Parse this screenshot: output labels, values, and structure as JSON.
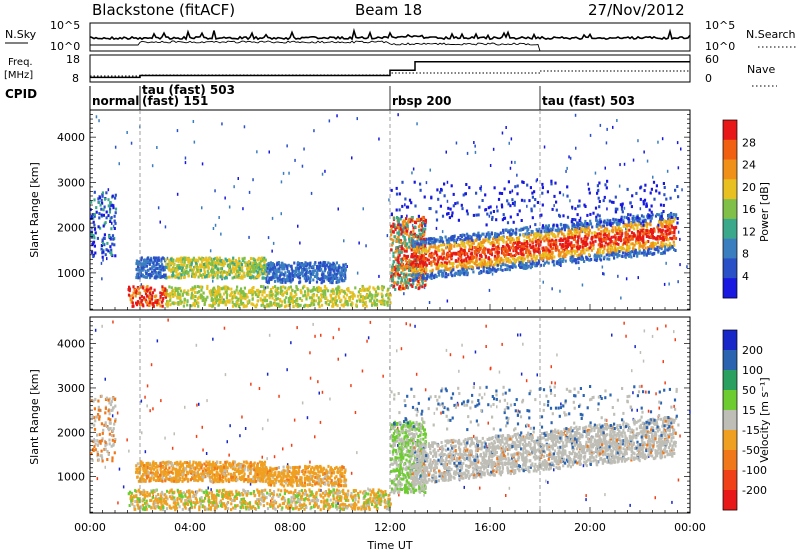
{
  "header": {
    "station": "Blackstone (fitACF)",
    "beam": "Beam 18",
    "date": "27/Nov/2012"
  },
  "chart_data": [
    {
      "type": "line",
      "panel": "noise",
      "left_label": "N.Sky",
      "right_label": "N.Search",
      "left_ticks": [
        "10^5",
        "10^0"
      ],
      "right_ticks": [
        "10^5",
        "10^0"
      ]
    },
    {
      "type": "line",
      "panel": "frequency",
      "left_label_1": "Freq.",
      "left_label_2": "[MHz]",
      "right_label": "Nave",
      "left_ticks": [
        18,
        8
      ],
      "right_ticks": [
        60,
        0
      ],
      "freq_steps": [
        [
          0,
          9.5
        ],
        [
          2.0,
          10.3
        ],
        [
          12.0,
          12.5
        ],
        [
          13.0,
          16.0
        ],
        [
          24.0,
          16.0
        ]
      ]
    },
    {
      "type": "table",
      "panel": "cpid",
      "label": "CPID",
      "modes": [
        {
          "t": 0.0,
          "text": "normal",
          "row": 2
        },
        {
          "t": 2.0,
          "text": "tau (fast) 503",
          "row": 1
        },
        {
          "t": 2.0,
          "text": "(fast) 151",
          "row": 2
        },
        {
          "t": 12.0,
          "text": "rbsp 200",
          "row": 2
        },
        {
          "t": 18.0,
          "text": "tau (fast) 503",
          "row": 2
        }
      ]
    },
    {
      "type": "heatmap",
      "panel": "power",
      "ylabel": "Slant Range [km]",
      "yticks": [
        1000,
        2000,
        3000,
        4000
      ],
      "ylim": [
        180,
        4600
      ],
      "colorbar_label": "Power [dB]",
      "colorbar_ticks": [
        4,
        8,
        12,
        16,
        20,
        24,
        28
      ],
      "colors": [
        "#1818e0",
        "#2a50c8",
        "#3a7ec0",
        "#3aa88a",
        "#80c048",
        "#e8c020",
        "#f09018",
        "#f06010",
        "#e81818"
      ]
    },
    {
      "type": "heatmap",
      "panel": "velocity",
      "ylabel": "Slant Range [km]",
      "yticks": [
        1000,
        2000,
        3000,
        4000
      ],
      "ylim": [
        180,
        4600
      ],
      "colorbar_label": "Velocity [m s⁻¹]",
      "colorbar_ticks": [
        200,
        100,
        50,
        15,
        -15,
        -50,
        -100,
        -200
      ],
      "colors": [
        "#1828c8",
        "#2a64b0",
        "#2aa060",
        "#6ccc30",
        "#bebeb6",
        "#f0a020",
        "#f07818",
        "#f04018",
        "#e81818"
      ]
    }
  ],
  "xaxis": {
    "label": "Time UT",
    "ticks": [
      "00:00",
      "04:00",
      "08:00",
      "12:00",
      "16:00",
      "20:00",
      "00:00"
    ]
  }
}
